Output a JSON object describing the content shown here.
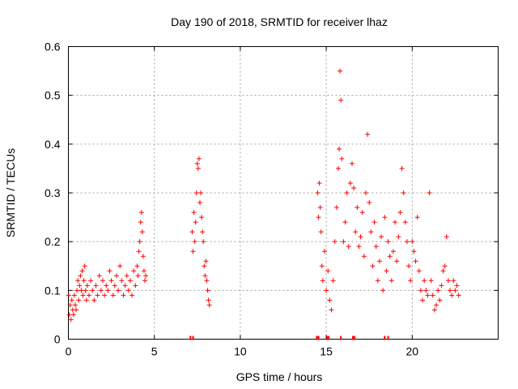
{
  "chart_data": {
    "type": "scatter",
    "title": "Day 190 of 2018, SRMTID for receiver lhaz",
    "xlabel": "GPS time / hours",
    "ylabel": "SRMTID / TECUs",
    "xlim": [
      0,
      25
    ],
    "ylim": [
      0,
      0.6
    ],
    "xticks": [
      0,
      5,
      10,
      15,
      20
    ],
    "yticks": [
      0,
      0.1,
      0.2,
      0.3,
      0.4,
      0.5,
      0.6
    ],
    "xtick_labels": [
      "0",
      "5",
      "10",
      "15",
      "20"
    ],
    "ytick_labels": [
      "0",
      "0.1",
      "0.2",
      "0.3",
      "0.4",
      "0.5",
      "0.6"
    ],
    "grid": true,
    "marker": "+",
    "color": "#ff0000",
    "series": [
      {
        "name": "SRMTID",
        "x": [
          0.02,
          0.05,
          0.1,
          0.15,
          0.2,
          0.25,
          0.3,
          0.35,
          0.4,
          0.45,
          0.5,
          0.55,
          0.6,
          0.65,
          0.7,
          0.75,
          0.8,
          0.85,
          0.9,
          0.95,
          1.0,
          1.05,
          1.1,
          1.2,
          1.3,
          1.4,
          1.5,
          1.6,
          1.7,
          1.8,
          1.9,
          2.0,
          2.1,
          2.2,
          2.3,
          2.4,
          2.5,
          2.6,
          2.7,
          2.8,
          2.9,
          3.0,
          3.1,
          3.2,
          3.3,
          3.4,
          3.5,
          3.6,
          3.7,
          3.8,
          3.9,
          4.0,
          4.05,
          4.1,
          4.15,
          4.2,
          4.25,
          4.3,
          4.35,
          4.4,
          4.45,
          4.5,
          7.2,
          7.25,
          7.3,
          7.35,
          7.4,
          7.45,
          7.5,
          7.55,
          7.6,
          7.65,
          7.7,
          7.75,
          7.8,
          7.85,
          7.9,
          7.95,
          8.0,
          8.05,
          8.1,
          8.15,
          8.2,
          14.5,
          14.55,
          14.6,
          14.65,
          14.7,
          14.75,
          14.8,
          14.9,
          15.0,
          15.1,
          15.2,
          15.3,
          15.4,
          15.5,
          15.6,
          15.7,
          15.75,
          15.8,
          15.85,
          15.9,
          16.0,
          16.1,
          16.2,
          16.3,
          16.4,
          16.5,
          16.6,
          16.7,
          16.8,
          16.9,
          17.0,
          17.1,
          17.2,
          17.3,
          17.4,
          17.5,
          17.6,
          17.7,
          17.8,
          17.9,
          18.0,
          18.1,
          18.2,
          18.3,
          18.4,
          18.5,
          18.6,
          18.7,
          18.8,
          18.9,
          19.0,
          19.1,
          19.2,
          19.3,
          19.4,
          19.5,
          19.6,
          19.7,
          19.8,
          19.9,
          20.0,
          20.1,
          20.2,
          20.3,
          20.4,
          20.5,
          20.6,
          20.7,
          20.8,
          20.9,
          21.0,
          21.1,
          21.2,
          21.3,
          21.4,
          21.5,
          21.6,
          21.7,
          21.8,
          21.9,
          22.0,
          22.1,
          22.2,
          22.3,
          22.4,
          22.5,
          22.6,
          22.7
        ],
        "y": [
          0.09,
          0.05,
          0.07,
          0.04,
          0.08,
          0.06,
          0.05,
          0.09,
          0.07,
          0.06,
          0.1,
          0.12,
          0.08,
          0.11,
          0.13,
          0.1,
          0.14,
          0.09,
          0.12,
          0.15,
          0.1,
          0.08,
          0.11,
          0.09,
          0.12,
          0.1,
          0.08,
          0.11,
          0.09,
          0.13,
          0.1,
          0.12,
          0.09,
          0.11,
          0.1,
          0.14,
          0.12,
          0.09,
          0.11,
          0.13,
          0.1,
          0.15,
          0.12,
          0.09,
          0.11,
          0.13,
          0.1,
          0.12,
          0.09,
          0.14,
          0.11,
          0.15,
          0.13,
          0.18,
          0.2,
          0.24,
          0.26,
          0.22,
          0.17,
          0.14,
          0.12,
          0.13,
          0.22,
          0.18,
          0.26,
          0.2,
          0.24,
          0.3,
          0.36,
          0.35,
          0.37,
          0.28,
          0.3,
          0.25,
          0.22,
          0.2,
          0.15,
          0.13,
          0.16,
          0.12,
          0.1,
          0.08,
          0.07,
          0.3,
          0.25,
          0.32,
          0.27,
          0.22,
          0.15,
          0.12,
          0.18,
          0.1,
          0.14,
          0.08,
          0.06,
          0.12,
          0.2,
          0.27,
          0.35,
          0.39,
          0.55,
          0.49,
          0.37,
          0.2,
          0.24,
          0.3,
          0.19,
          0.32,
          0.36,
          0.31,
          0.22,
          0.27,
          0.19,
          0.21,
          0.26,
          0.17,
          0.3,
          0.42,
          0.28,
          0.22,
          0.15,
          0.24,
          0.19,
          0.12,
          0.16,
          0.21,
          0.1,
          0.25,
          0.14,
          0.2,
          0.17,
          0.12,
          0.18,
          0.24,
          0.16,
          0.21,
          0.26,
          0.35,
          0.3,
          0.24,
          0.2,
          0.15,
          0.12,
          0.2,
          0.18,
          0.16,
          0.25,
          0.14,
          0.1,
          0.08,
          0.12,
          0.1,
          0.09,
          0.3,
          0.12,
          0.09,
          0.06,
          0.07,
          0.1,
          0.08,
          0.11,
          0.14,
          0.15,
          0.21,
          0.12,
          0.1,
          0.09,
          0.12,
          0.1,
          0.11,
          0.09
        ]
      }
    ],
    "lost_lock_marks_x": [
      7.1,
      7.25,
      14.45,
      14.55,
      15.05,
      15.15,
      15.85,
      16.55,
      16.65,
      18.4,
      18.6
    ]
  }
}
